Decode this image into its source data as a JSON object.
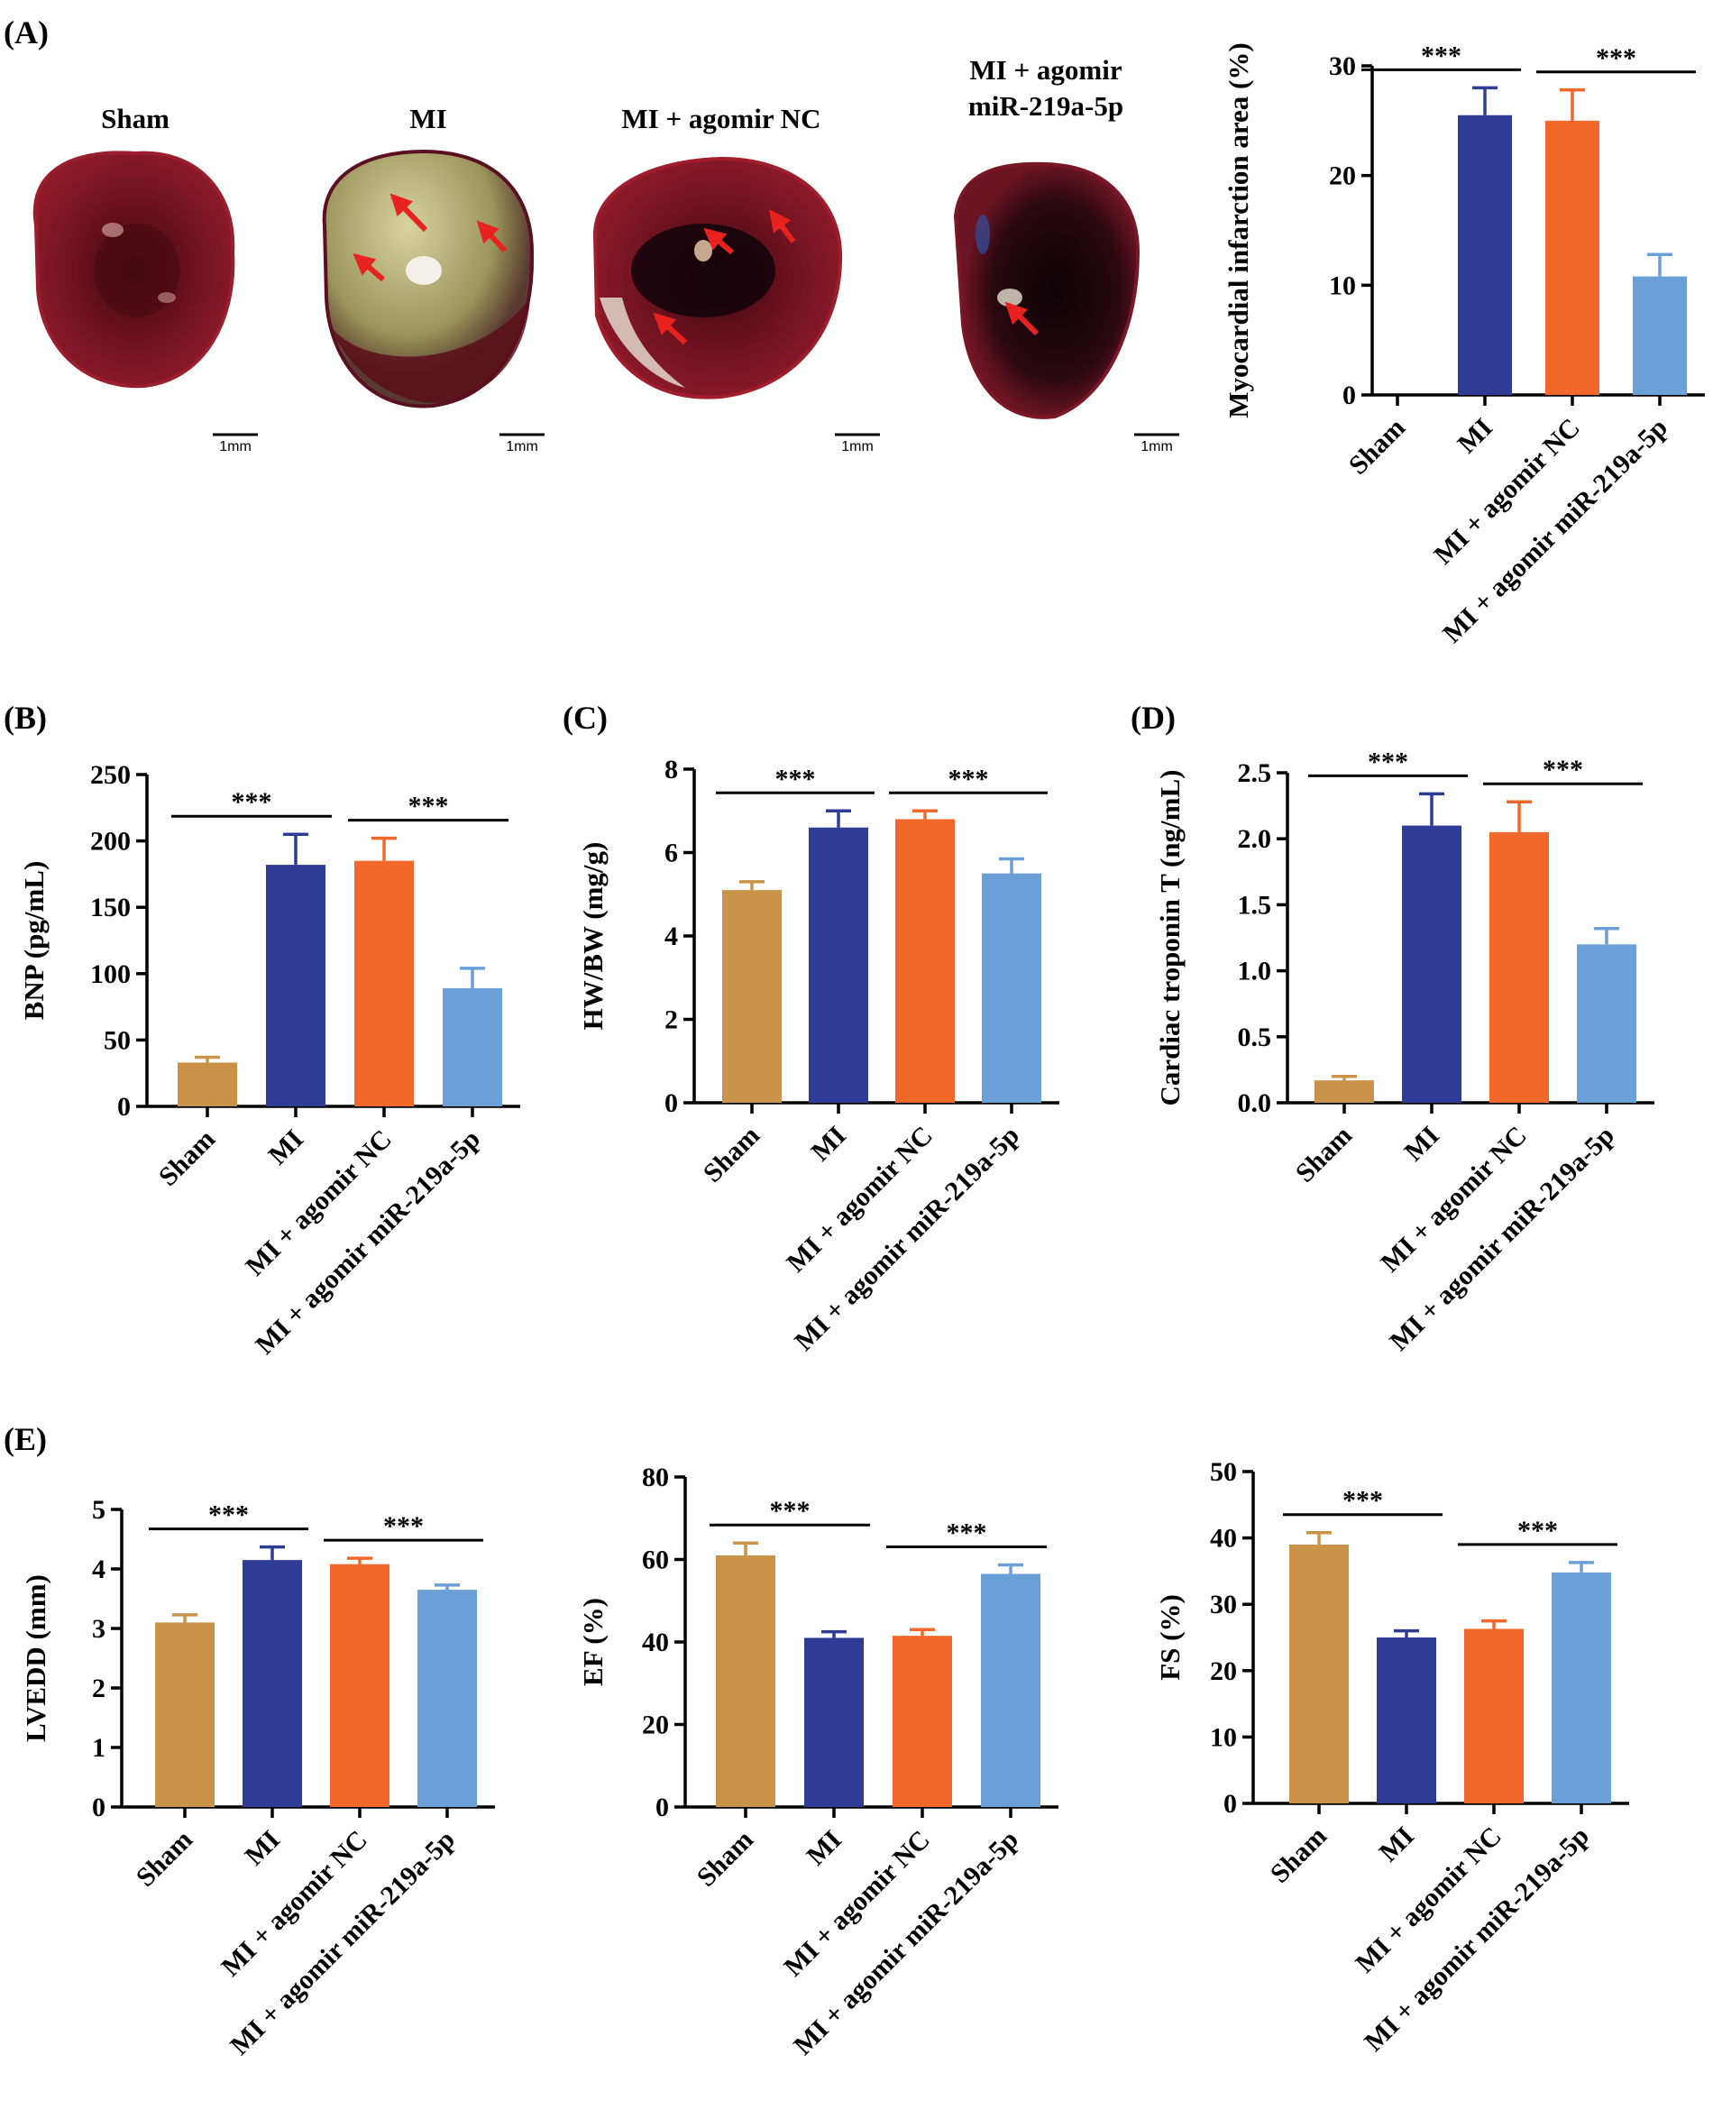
{
  "panel_labels": [
    "(A)",
    "(B)",
    "(C)",
    "(D)",
    "(E)"
  ],
  "photos": [
    {
      "title_lines": [
        "Sham"
      ],
      "scale": "1mm",
      "arrows": 0
    },
    {
      "title_lines": [
        "MI"
      ],
      "scale": "1mm",
      "arrows": 3
    },
    {
      "title_lines": [
        "MI + agomir NC"
      ],
      "scale": "1mm",
      "arrows": 3
    },
    {
      "title_lines": [
        "MI + agomir",
        "miR-219a-5p"
      ],
      "scale": "1mm",
      "arrows": 1
    }
  ],
  "colors": {
    "Sham": "#c9944a",
    "MI": "#2e3c96",
    "MI + agomir NC": "#f2682a",
    "MI + agomir miR-219a-5p": "#6a9fd8"
  },
  "chart_data": [
    {
      "id": "A",
      "type": "bar",
      "categories": [
        "Sham",
        "MI",
        "MI + agomir NC",
        "MI + agomir miR-219a-5p"
      ],
      "values": [
        0,
        25.5,
        25.0,
        10.8
      ],
      "errors": [
        0,
        2.5,
        2.8,
        2.0
      ],
      "ylabel": "Myocardial infarction area (%)",
      "ylim": [
        0,
        30
      ],
      "yticks": [
        0,
        10,
        20,
        30
      ],
      "significance": [
        {
          "from": 0,
          "to": 1,
          "label": "***"
        },
        {
          "from": 2,
          "to": 3,
          "label": "***"
        }
      ]
    },
    {
      "id": "B",
      "type": "bar",
      "categories": [
        "Sham",
        "MI",
        "MI + agomir NC",
        "MI + agomir miR-219a-5p"
      ],
      "values": [
        33,
        182,
        185,
        89
      ],
      "errors": [
        4,
        23,
        17,
        15
      ],
      "ylabel": "BNP (pg/mL)",
      "ylim": [
        0,
        250
      ],
      "yticks": [
        0,
        50,
        100,
        150,
        200,
        250
      ],
      "significance": [
        {
          "from": 0,
          "to": 1,
          "label": "***"
        },
        {
          "from": 2,
          "to": 3,
          "label": "***"
        }
      ]
    },
    {
      "id": "C",
      "type": "bar",
      "categories": [
        "Sham",
        "MI",
        "MI + agomir NC",
        "MI + agomir miR-219a-5p"
      ],
      "values": [
        5.1,
        6.6,
        6.8,
        5.5
      ],
      "errors": [
        0.2,
        0.4,
        0.2,
        0.35
      ],
      "ylabel": "HW/BW (mg/g)",
      "ylim": [
        0,
        8
      ],
      "yticks": [
        0,
        2,
        4,
        6,
        8
      ],
      "significance": [
        {
          "from": 0,
          "to": 1,
          "label": "***"
        },
        {
          "from": 2,
          "to": 3,
          "label": "***"
        }
      ]
    },
    {
      "id": "D",
      "type": "bar",
      "categories": [
        "Sham",
        "MI",
        "MI + agomir NC",
        "MI + agomir miR-219a-5p"
      ],
      "values": [
        0.17,
        2.1,
        2.05,
        1.2
      ],
      "errors": [
        0.03,
        0.24,
        0.23,
        0.12
      ],
      "ylabel": "Cardiac troponin T (ng/mL)",
      "ylim": [
        0,
        2.5
      ],
      "yticks": [
        "0.0",
        "0.5",
        "1.0",
        "1.5",
        "2.0",
        "2.5"
      ],
      "significance": [
        {
          "from": 0,
          "to": 1,
          "label": "***"
        },
        {
          "from": 2,
          "to": 3,
          "label": "***"
        }
      ]
    },
    {
      "id": "E1",
      "type": "bar",
      "categories": [
        "Sham",
        "MI",
        "MI + agomir NC",
        "MI + agomir miR-219a-5p"
      ],
      "values": [
        3.1,
        4.15,
        4.08,
        3.65
      ],
      "errors": [
        0.13,
        0.22,
        0.1,
        0.08
      ],
      "ylabel": "LVEDD (mm)",
      "ylim": [
        0,
        5
      ],
      "yticks": [
        0,
        1,
        2,
        3,
        4,
        5
      ],
      "significance": [
        {
          "from": 0,
          "to": 1,
          "label": "***"
        },
        {
          "from": 2,
          "to": 3,
          "label": "***"
        }
      ]
    },
    {
      "id": "E2",
      "type": "bar",
      "categories": [
        "Sham",
        "MI",
        "MI + agomir NC",
        "MI + agomir miR-219a-5p"
      ],
      "values": [
        61,
        41,
        41.5,
        56.5
      ],
      "errors": [
        3,
        1.5,
        1.5,
        2.2
      ],
      "ylabel": "EF (%)",
      "ylim": [
        0,
        80
      ],
      "yticks": [
        0,
        20,
        40,
        60,
        80
      ],
      "significance": [
        {
          "from": 0,
          "to": 1,
          "label": "***"
        },
        {
          "from": 2,
          "to": 3,
          "label": "***"
        }
      ]
    },
    {
      "id": "E3",
      "type": "bar",
      "categories": [
        "Sham",
        "MI",
        "MI + agomir NC",
        "MI + agomir miR-219a-5p"
      ],
      "values": [
        39,
        25,
        26.3,
        34.8
      ],
      "errors": [
        1.8,
        1.0,
        1.2,
        1.5
      ],
      "ylabel": "FS (%)",
      "ylim": [
        0,
        50
      ],
      "yticks": [
        0,
        10,
        20,
        30,
        40,
        50
      ],
      "significance": [
        {
          "from": 0,
          "to": 1,
          "label": "***"
        },
        {
          "from": 2,
          "to": 3,
          "label": "***"
        }
      ]
    }
  ]
}
